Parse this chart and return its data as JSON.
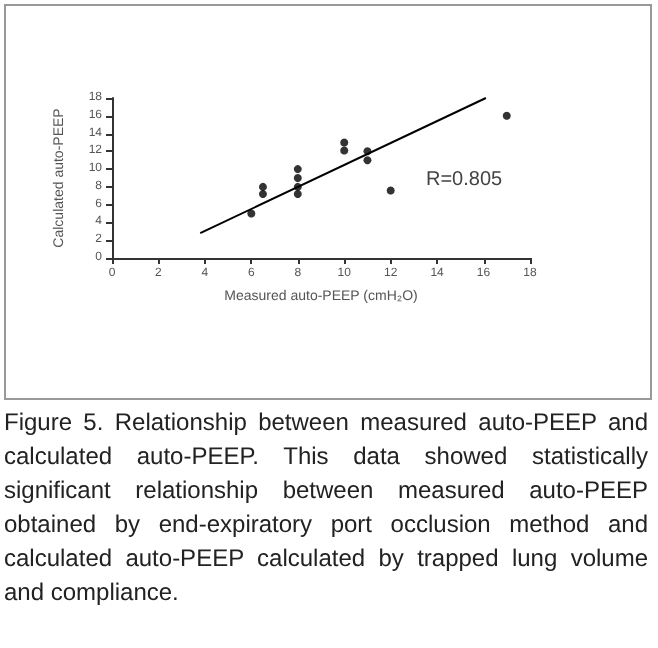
{
  "chart_data": {
    "type": "scatter",
    "xlabel": "Measured auto-PEEP (cmH₂O)",
    "ylabel": "Calculated auto-PEEP",
    "xlim": [
      0,
      18
    ],
    "xticks": [
      0,
      2,
      4,
      6,
      8,
      10,
      12,
      14,
      16,
      18
    ],
    "ylim": [
      0,
      18
    ],
    "yticks": [
      0,
      2,
      4,
      6,
      8,
      10,
      12,
      14,
      16,
      18
    ],
    "grid": false,
    "marker": "circle",
    "series": [
      {
        "type": "scatter",
        "color": "#000000",
        "x": [
          6,
          6.5,
          6.5,
          8,
          8,
          8,
          8,
          10,
          10,
          11,
          11,
          12,
          17
        ],
        "values": [
          5,
          8,
          7.2,
          10,
          9,
          8,
          7.2,
          13,
          12.1,
          12,
          11,
          7.6,
          16
        ]
      },
      {
        "type": "line",
        "color": "#000000",
        "marker": "none",
        "x": [
          3.8,
          16.1
        ],
        "values": [
          2.8,
          18
        ]
      }
    ],
    "annotations": [
      "R=0.805",
      "Figure 5. Relationship between measured auto-PEEP and calculated auto-PEEP. This data showed statistically significant relationship between measured auto-PEEP obtained by end-expiratory port occlusion method and calculated auto-PEEP calculated by trapped lung volume and compliance."
    ]
  }
}
